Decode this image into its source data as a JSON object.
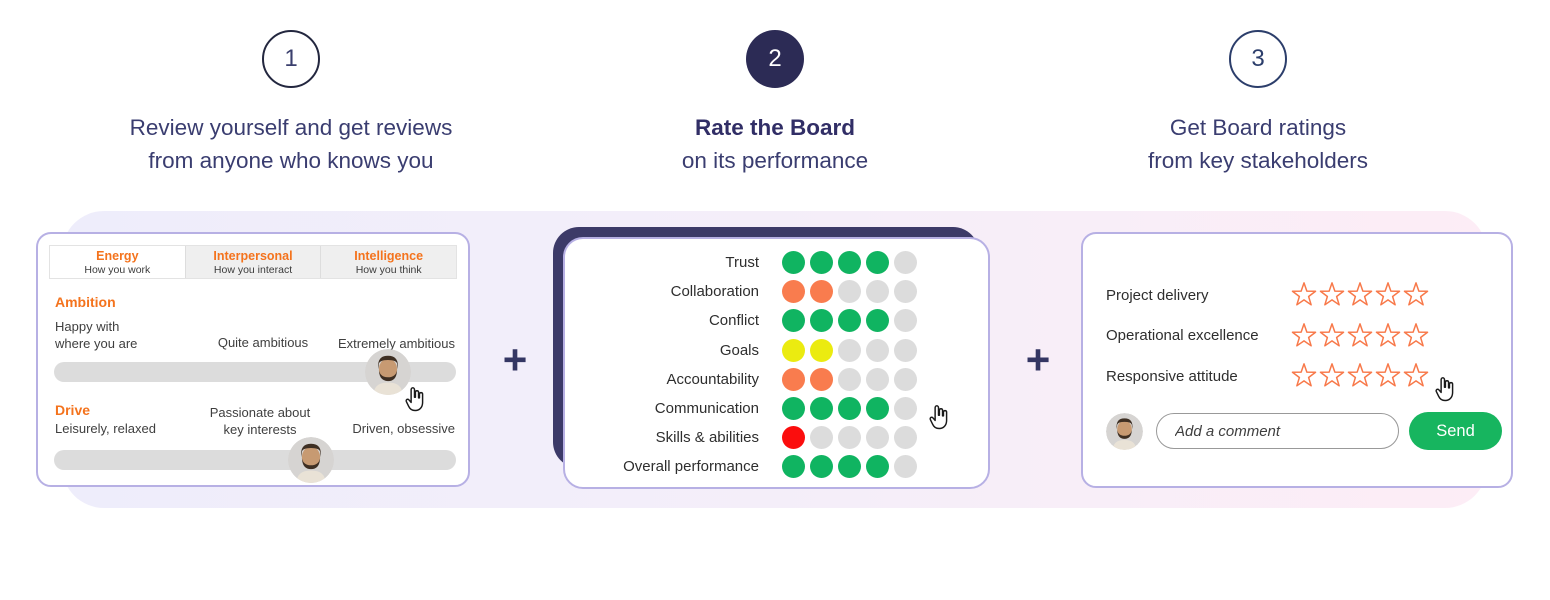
{
  "steps": [
    {
      "number": "1",
      "line1": "Review yourself and get reviews",
      "line2": "from anyone who knows you"
    },
    {
      "number": "2",
      "line1": "Rate the Board",
      "line2": "on its performance"
    },
    {
      "number": "3",
      "line1": "Get Board ratings",
      "line2": "from key stakeholders"
    }
  ],
  "plus_sign": "+",
  "self_review_card": {
    "tabs": [
      {
        "title": "Energy",
        "subtitle": "How you work",
        "active": true
      },
      {
        "title": "Interpersonal",
        "subtitle": "How you interact",
        "active": false
      },
      {
        "title": "Intelligence",
        "subtitle": "How you think",
        "active": false
      }
    ],
    "sliders": [
      {
        "trait": "Ambition",
        "left_label_lines": [
          "Happy with",
          "where you are"
        ],
        "mid_label_lines": [
          "Quite ambitious"
        ],
        "right_label_lines": [
          "Extremely ambitious"
        ],
        "position_pct": 83
      },
      {
        "trait": "Drive",
        "left_label_lines": [
          "Leisurely, relaxed"
        ],
        "mid_label_lines": [
          "Passionate about",
          "key interests"
        ],
        "right_label_lines": [
          "Driven, obsessive"
        ],
        "position_pct": 64
      }
    ]
  },
  "board_rating_card": {
    "dots_per_row": 5,
    "rows": [
      {
        "label": "Trust",
        "filled": 4,
        "color": "green"
      },
      {
        "label": "Collaboration",
        "filled": 2,
        "color": "orange"
      },
      {
        "label": "Conflict",
        "filled": 4,
        "color": "green"
      },
      {
        "label": "Goals",
        "filled": 2,
        "color": "yellow"
      },
      {
        "label": "Accountability",
        "filled": 2,
        "color": "orange"
      },
      {
        "label": "Communication",
        "filled": 4,
        "color": "green"
      },
      {
        "label": "Skills & abilities",
        "filled": 1,
        "color": "red"
      },
      {
        "label": "Overall performance",
        "filled": 4,
        "color": "green"
      }
    ]
  },
  "stakeholder_card": {
    "rows": [
      {
        "label": "Project delivery",
        "stars": 5,
        "rated": 0
      },
      {
        "label": "Operational excellence",
        "stars": 5,
        "rated": 0
      },
      {
        "label": "Responsive attitude",
        "stars": 5,
        "rated": 0
      }
    ],
    "comment_placeholder": "Add a comment",
    "send_label": "Send"
  },
  "colors": {
    "dot": {
      "green": "#10b461",
      "orange": "#f97c4e",
      "yellow": "#ebeb10",
      "red": "#fb0d0d",
      "empty": "#dcdcdc"
    },
    "star_outline": "#f8794a",
    "accent_orange": "#f4731d",
    "send_green": "#17b55f",
    "navy": "#2c2b55",
    "card_border": "#b7b0e4"
  }
}
